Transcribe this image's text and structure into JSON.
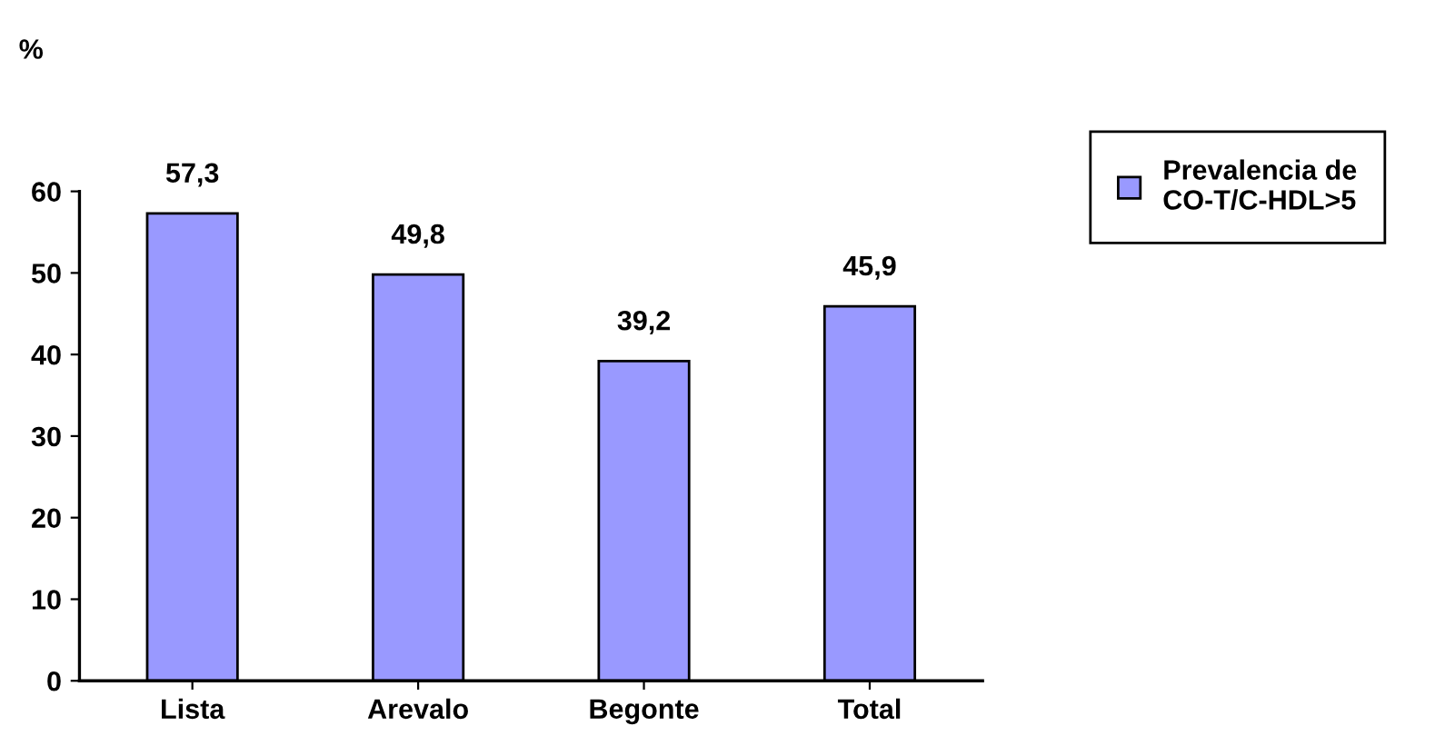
{
  "chart_data": {
    "type": "bar",
    "ylabel": "%",
    "categories": [
      "Lista",
      "Arevalo",
      "Begonte",
      "Total"
    ],
    "series": [
      {
        "name": "Prevalencia de\nCO-T/C-HDL>5",
        "color": "#9999ff",
        "values": [
          57.3,
          49.8,
          39.2,
          45.9
        ],
        "value_labels": [
          "57,3",
          "49,8",
          "39,2",
          "45,9"
        ]
      }
    ],
    "ylim": [
      0,
      60
    ],
    "yticks": [
      0,
      10,
      20,
      30,
      40,
      50,
      60
    ],
    "grid": false,
    "legend": "right"
  }
}
